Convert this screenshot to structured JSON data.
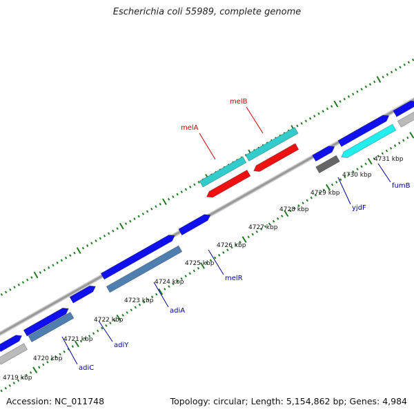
{
  "title": "Escherichia coli 55989, complete genome",
  "footer": {
    "accession": "Accession: NC_011748",
    "info": "Topology: circular; Length: 5,154,862 bp; Genes: 4,984"
  },
  "kbp_labels": [
    "4719 kbp",
    "4720 kbp",
    "4721 kbp",
    "4722 kbp",
    "4723 kbp",
    "4724 kbp",
    "4725 kbp",
    "4726 kbp",
    "4727 kbp",
    "4728 kbp",
    "4729 kbp",
    "4730 kbp",
    "4731 kbp"
  ],
  "gene_labels": [
    {
      "name": "melA",
      "color": "#cc0000"
    },
    {
      "name": "melB",
      "color": "#cc0000"
    },
    {
      "name": "yjdF",
      "color": "#000099"
    },
    {
      "name": "fumB",
      "color": "#000099"
    },
    {
      "name": "melR",
      "color": "#000099"
    },
    {
      "name": "adiA",
      "color": "#000099"
    },
    {
      "name": "adiY",
      "color": "#000099"
    },
    {
      "name": "adiC",
      "color": "#000099"
    }
  ],
  "colors": {
    "backbone": "#999999",
    "tick": "#1f7a1f",
    "forward_gene": "#1010ee",
    "cyan_gene": "#33cccc",
    "red_gene": "#ee1111",
    "steel_gene": "#4f7fb0",
    "gray_gene": "#bbbbbb",
    "dark_gene": "#666666",
    "bright_cyan_gene": "#22eeee"
  }
}
